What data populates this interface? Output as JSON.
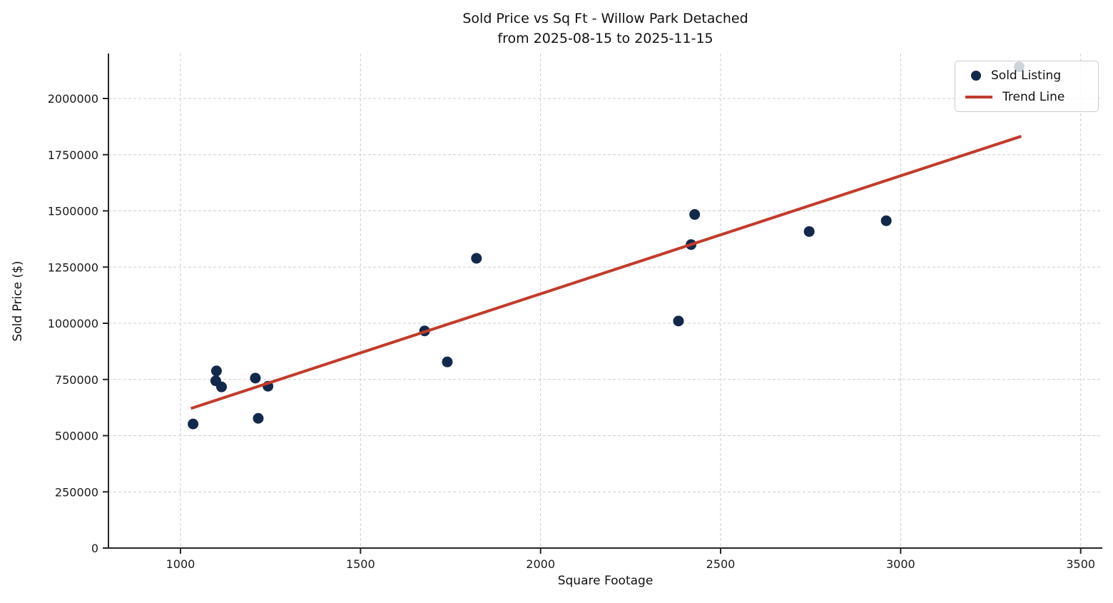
{
  "chart_data": {
    "type": "scatter",
    "title": "Sold Price vs Sq Ft - Willow Park Detached",
    "subtitle": "from 2025-08-15 to 2025-11-15",
    "xlabel": "Square Footage",
    "ylabel": "Sold Price ($)",
    "xlim": [
      800,
      3560
    ],
    "ylim": [
      0,
      2200000
    ],
    "x_ticks": [
      1000,
      1500,
      2000,
      2500,
      3000,
      3500
    ],
    "y_ticks": [
      0,
      250000,
      500000,
      750000,
      1000000,
      1250000,
      1500000,
      1750000,
      2000000
    ],
    "grid": true,
    "legend": {
      "position": "upper right",
      "entries": [
        {
          "label": "Sold Listing",
          "marker": "circle"
        },
        {
          "label": "Trend Line",
          "marker": "line"
        }
      ]
    },
    "series": [
      {
        "name": "Sold Listing",
        "type": "scatter",
        "color": "#13294b",
        "marker_radius": 7.5,
        "points": [
          [
            1035,
            552000
          ],
          [
            1100,
            788000
          ],
          [
            1098,
            744000
          ],
          [
            1114,
            717000
          ],
          [
            1208,
            756000
          ],
          [
            1216,
            577000
          ],
          [
            1243,
            720000
          ],
          [
            1678,
            966000
          ],
          [
            1741,
            828000
          ],
          [
            1822,
            1289000
          ],
          [
            2383,
            1010000
          ],
          [
            2418,
            1350000
          ],
          [
            2428,
            1484000
          ],
          [
            2746,
            1408000
          ],
          [
            2960,
            1456000
          ],
          [
            3329,
            2141000
          ]
        ]
      },
      {
        "name": "Trend Line",
        "type": "line",
        "color": "#c23b2b",
        "line_width": 4,
        "points": [
          [
            1029,
            621000
          ],
          [
            3335,
            1832000
          ]
        ]
      }
    ]
  }
}
